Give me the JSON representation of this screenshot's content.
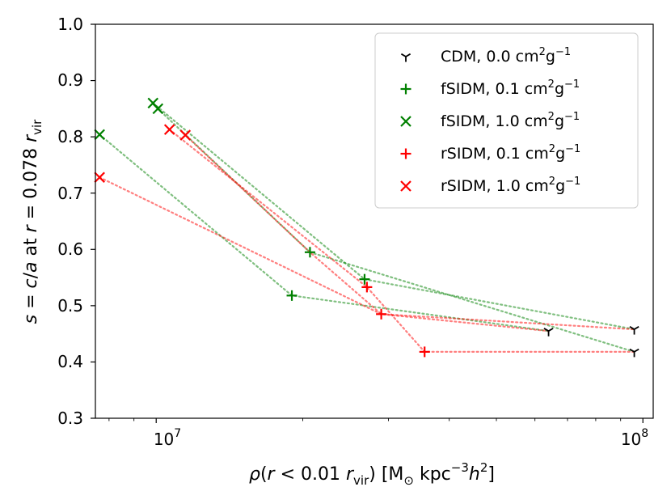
{
  "chart_data": {
    "type": "scatter",
    "xscale": "log",
    "xlim": [
      7500000,
      105000000
    ],
    "ylim": [
      0.3,
      1.0
    ],
    "x_ticks": [
      {
        "value": 10000000,
        "base": "10",
        "exp": "7"
      },
      {
        "value": 100000000,
        "base": "10",
        "exp": "8"
      }
    ],
    "y_ticks": [
      "0.3",
      "0.4",
      "0.5",
      "0.6",
      "0.7",
      "0.8",
      "0.9",
      "1.0"
    ],
    "ylabel": {
      "s": "s",
      "eq": " = ",
      "c": "c",
      "slash": "/",
      "a": "a",
      "at": " at ",
      "r": "r",
      "eq2": " = 0.078 ",
      "r2": "r",
      "sub": "vir"
    },
    "xlabel": {
      "rho": "ρ",
      "open": "(",
      "r": "r",
      "lt": " < 0.01 ",
      "r2": "r",
      "sub": "vir",
      "close": ") [M",
      "sun": "⊙",
      "kpc": " kpc",
      "exp1": "−3",
      "h": "h",
      "exp2": "2",
      "end": "]"
    },
    "legend": [
      {
        "name": "CDM, 0.0 cm",
        "sup1": "2",
        "g": "g",
        "sup2": "−1",
        "color": "#000000",
        "marker": "tri_down"
      },
      {
        "name": "fSIDM, 0.1 cm",
        "sup1": "2",
        "g": "g",
        "sup2": "−1",
        "color": "#008000",
        "marker": "plus"
      },
      {
        "name": "fSIDM, 1.0 cm",
        "sup1": "2",
        "g": "g",
        "sup2": "−1",
        "color": "#008000",
        "marker": "x"
      },
      {
        "name": "rSIDM, 0.1 cm",
        "sup1": "2",
        "g": "g",
        "sup2": "−1",
        "color": "#ff0000",
        "marker": "plus"
      },
      {
        "name": "rSIDM, 1.0 cm",
        "sup1": "2",
        "g": "g",
        "sup2": "−1",
        "color": "#ff0000",
        "marker": "x"
      }
    ],
    "points": [
      {
        "x": 96000000,
        "y": 0.458,
        "series": "CDM",
        "marker": "tri_down",
        "color": "#000000"
      },
      {
        "x": 64000000,
        "y": 0.455,
        "series": "CDM",
        "marker": "tri_down",
        "color": "#000000"
      },
      {
        "x": 96000000,
        "y": 0.418,
        "series": "CDM",
        "marker": "tri_down",
        "color": "#000000"
      },
      {
        "x": 20700000,
        "y": 0.595,
        "series": "fSIDM 0.1",
        "marker": "plus",
        "color": "#008000"
      },
      {
        "x": 26800000,
        "y": 0.547,
        "series": "fSIDM 0.1",
        "marker": "plus",
        "color": "#008000"
      },
      {
        "x": 19000000,
        "y": 0.518,
        "series": "fSIDM 0.1",
        "marker": "plus",
        "color": "#008000"
      },
      {
        "x": 9850000,
        "y": 0.86,
        "series": "fSIDM 1.0",
        "marker": "x",
        "color": "#008000"
      },
      {
        "x": 10080000,
        "y": 0.85,
        "series": "fSIDM 1.0",
        "marker": "x",
        "color": "#008000"
      },
      {
        "x": 7650000,
        "y": 0.804,
        "series": "fSIDM 1.0",
        "marker": "x",
        "color": "#008000"
      },
      {
        "x": 27100000,
        "y": 0.533,
        "series": "rSIDM 0.1",
        "marker": "plus",
        "color": "#ff0000"
      },
      {
        "x": 29000000,
        "y": 0.485,
        "series": "rSIDM 0.1",
        "marker": "plus",
        "color": "#ff0000"
      },
      {
        "x": 35600000,
        "y": 0.418,
        "series": "rSIDM 0.1",
        "marker": "plus",
        "color": "#ff0000"
      },
      {
        "x": 10650000,
        "y": 0.813,
        "series": "rSIDM 1.0",
        "marker": "x",
        "color": "#ff0000"
      },
      {
        "x": 11480000,
        "y": 0.803,
        "series": "rSIDM 1.0",
        "marker": "x",
        "color": "#ff0000"
      },
      {
        "x": 7650000,
        "y": 0.728,
        "series": "rSIDM 1.0",
        "marker": "x",
        "color": "#ff0000"
      }
    ],
    "lines": [
      {
        "color": "#008000",
        "points": [
          [
            10080000,
            0.85
          ],
          [
            20700000,
            0.595
          ],
          [
            96000000,
            0.418
          ]
        ]
      },
      {
        "color": "#008000",
        "points": [
          [
            9850000,
            0.86
          ],
          [
            26800000,
            0.547
          ],
          [
            96000000,
            0.458
          ]
        ]
      },
      {
        "color": "#008000",
        "points": [
          [
            7650000,
            0.804
          ],
          [
            19000000,
            0.518
          ],
          [
            64000000,
            0.455
          ]
        ]
      },
      {
        "color": "#ff0000",
        "points": [
          [
            10650000,
            0.813
          ],
          [
            27100000,
            0.533
          ],
          [
            35600000,
            0.418
          ],
          [
            96000000,
            0.418
          ]
        ]
      },
      {
        "color": "#ff0000",
        "points": [
          [
            11480000,
            0.803
          ],
          [
            20700000,
            0.595
          ],
          [
            29000000,
            0.485
          ],
          [
            96000000,
            0.458
          ]
        ]
      },
      {
        "color": "#ff0000",
        "points": [
          [
            7650000,
            0.728
          ],
          [
            29000000,
            0.485
          ],
          [
            64000000,
            0.455
          ]
        ]
      }
    ]
  }
}
